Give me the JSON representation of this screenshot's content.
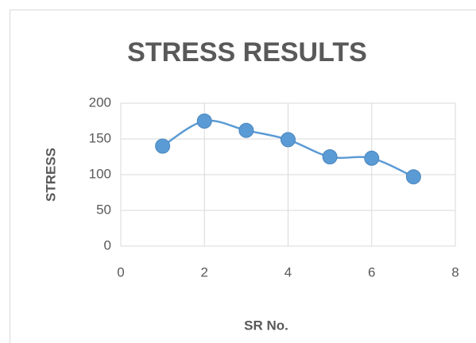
{
  "chart_data": {
    "type": "line",
    "title": "STRESS RESULTS",
    "xlabel": "SR No.",
    "ylabel": "STRESS",
    "x": [
      1,
      2,
      3,
      4,
      5,
      6,
      7
    ],
    "values": [
      140,
      175,
      162,
      149,
      125,
      123,
      97
    ],
    "color": "#5b9bd5",
    "xlim": [
      0,
      8
    ],
    "xticks": [
      0,
      2,
      4,
      6,
      8
    ],
    "ylim": [
      0,
      200
    ],
    "yticks": [
      0,
      50,
      100,
      150,
      200
    ],
    "grid": true,
    "smooth": true
  }
}
